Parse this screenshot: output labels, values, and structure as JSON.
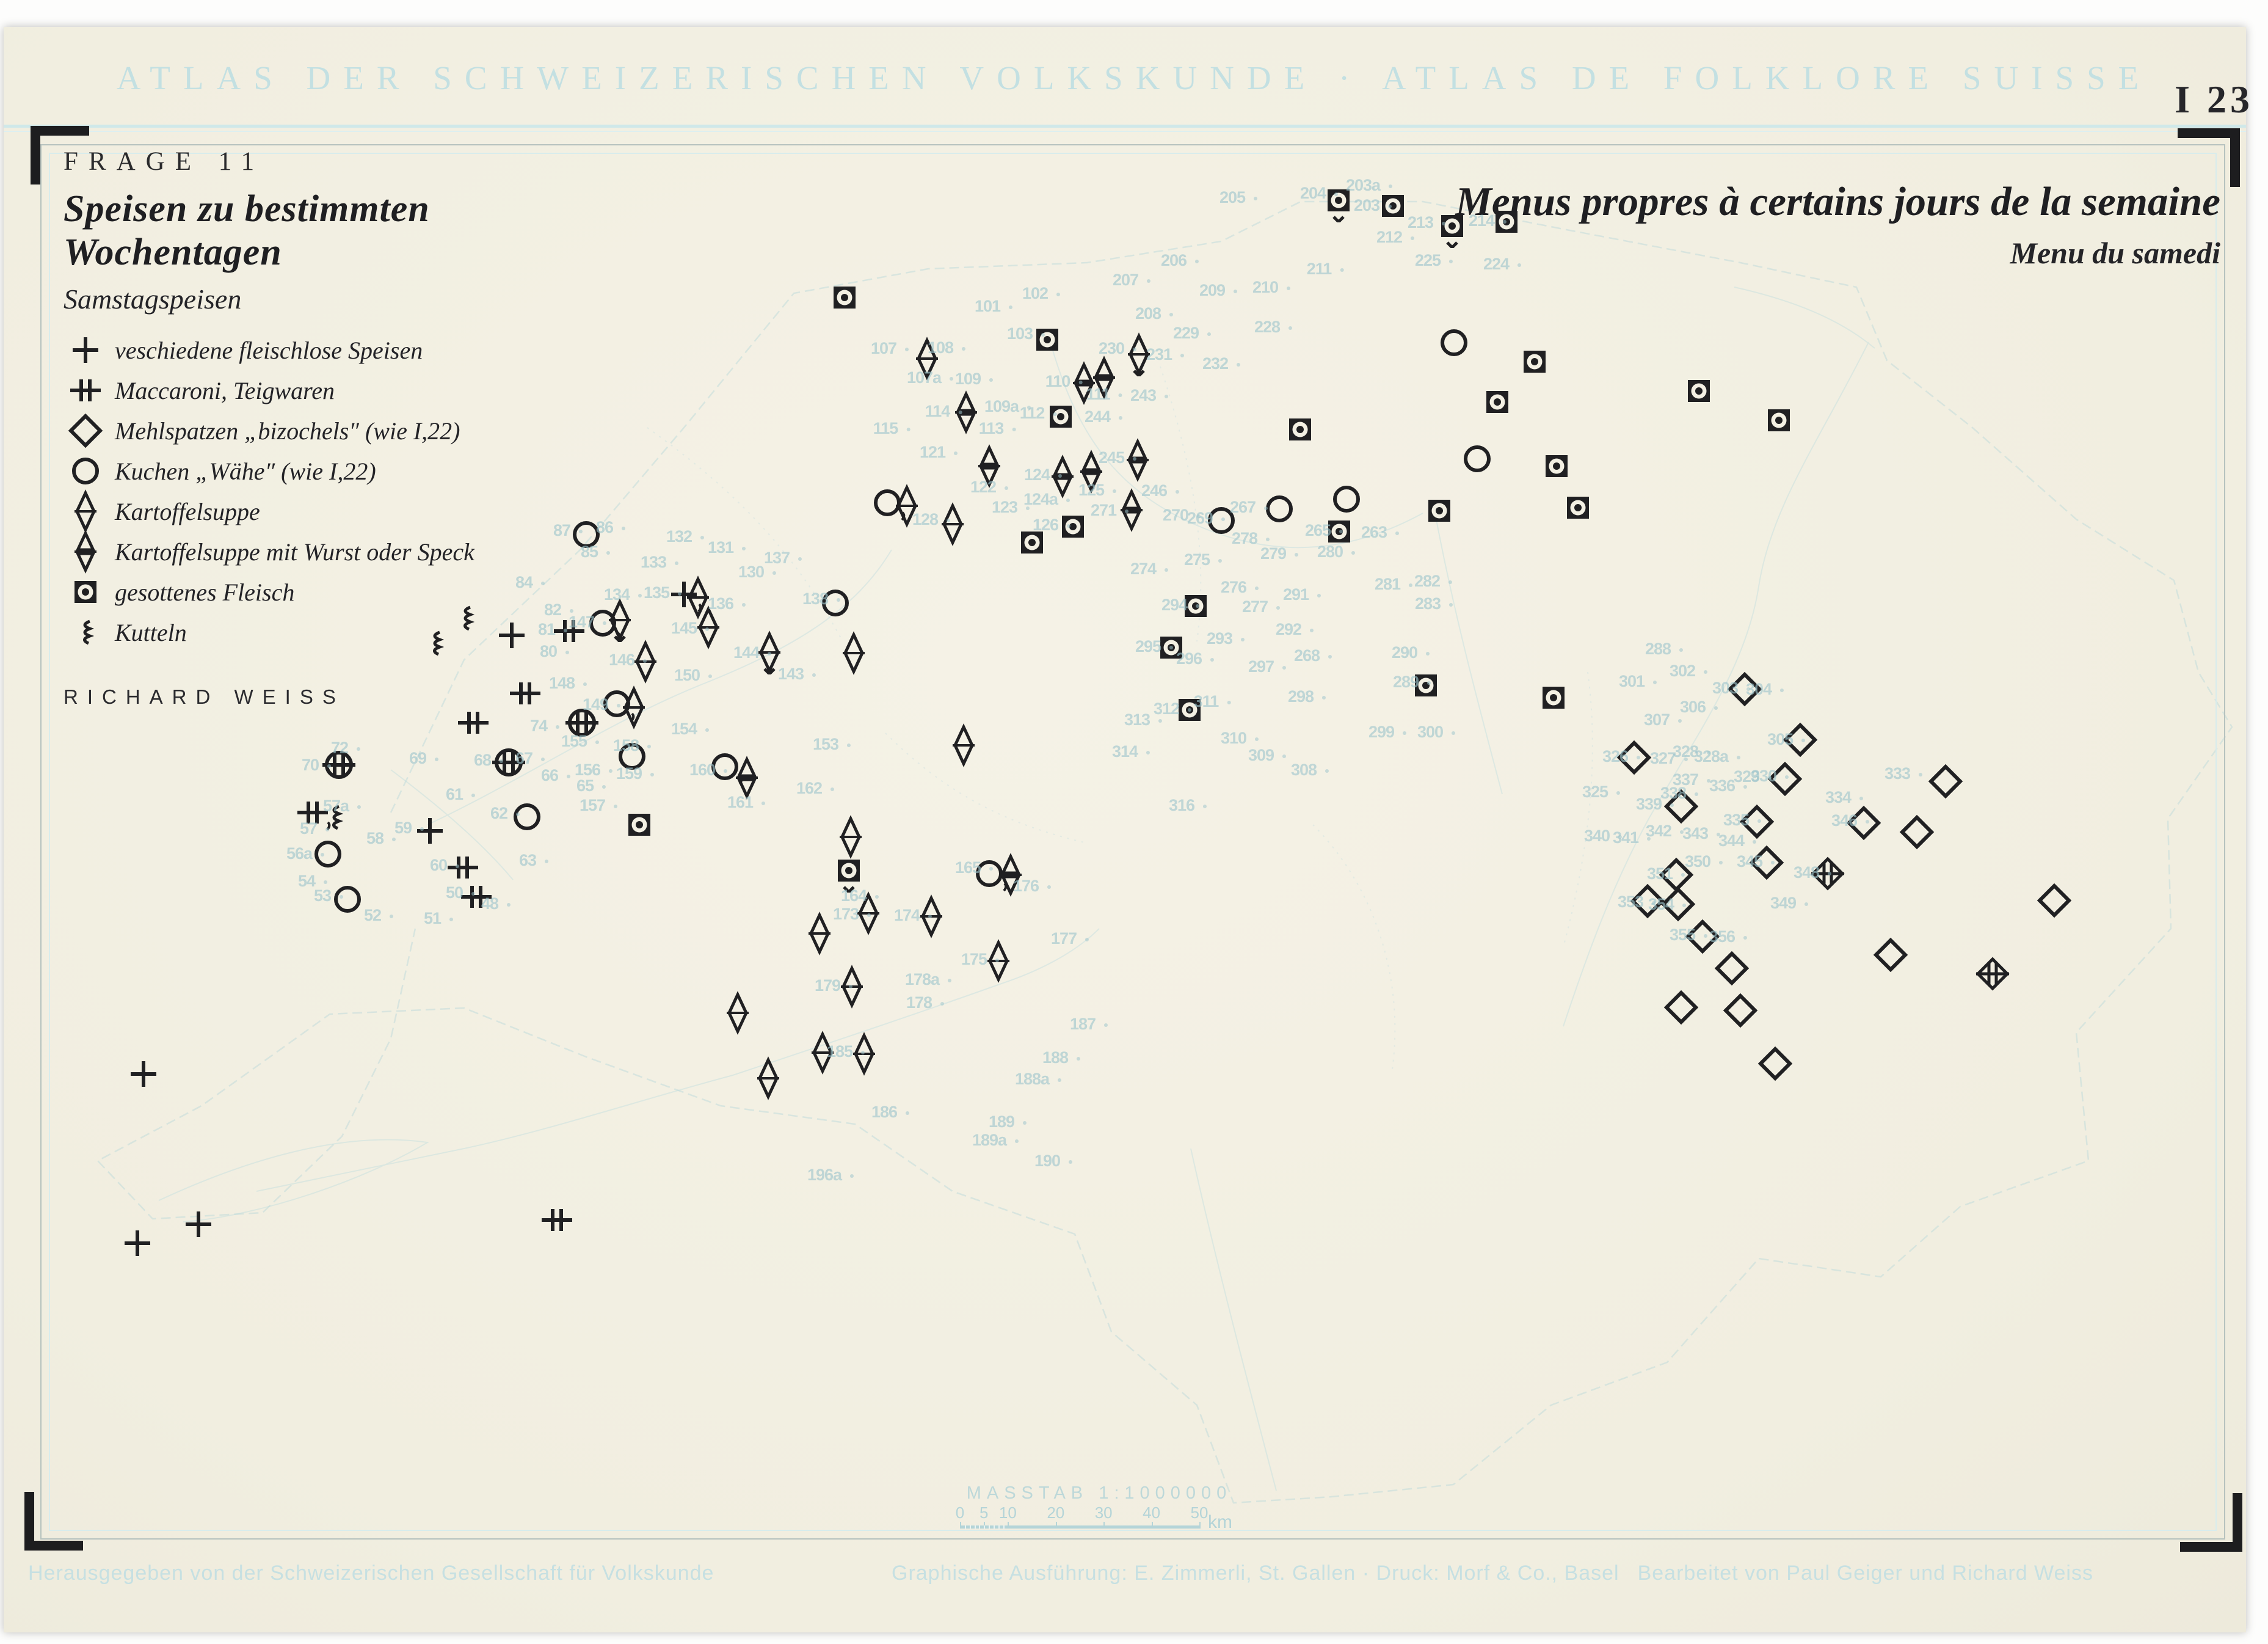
{
  "header": {
    "title": "ATLAS DER SCHWEIZERISCHEN VOLKSKUNDE · ATLAS DE FOLKLORE SUISSE"
  },
  "plate_code": "I 23",
  "legend": {
    "frage": "FRAGE 11",
    "title_de": "Speisen zu bestimmten Wochentagen",
    "subtitle_de": "Samstagspeisen",
    "items": [
      {
        "symbol": "plus",
        "label": "veschiedene fleischlose Speisen"
      },
      {
        "symbol": "maccaroni",
        "label": "Maccaroni, Teigwaren"
      },
      {
        "symbol": "diamond",
        "label": "Mehlspatzen „bizochels″ (wie I,22)"
      },
      {
        "symbol": "circle",
        "label": "Kuchen „Wähe″ (wie I,22)"
      },
      {
        "symbol": "soup",
        "label": "Kartoffelsuppe"
      },
      {
        "symbol": "soup2",
        "label": "Kartoffelsuppe mit Wurst oder Speck"
      },
      {
        "symbol": "meat",
        "label": "gesottenes Fleisch"
      },
      {
        "symbol": "tripe",
        "label": "Kutteln"
      }
    ],
    "author": "RICHARD WEISS"
  },
  "title_fr": {
    "main": "Menus propres à certains jours de la semaine",
    "sub": "Menu du samedi"
  },
  "scalebar": {
    "label": "MASSTAB 1:1000000",
    "ticks": [
      0,
      5,
      10,
      20,
      30,
      40,
      50
    ],
    "max_km": 50,
    "unit": "km"
  },
  "footer": {
    "left": "Herausgegeben von der Schweizerischen Gesellschaft für Volkskunde",
    "center": "Graphische Ausführung: E. Zimmerli, St. Gallen · Druck: Morf & Co., Basel",
    "right": "Bearbeitet von Paul Geiger und Richard Weiss"
  },
  "colors": {
    "paper": "#f3f0e3",
    "ink": "#202022",
    "pale_blue_text": "#c3e0e2",
    "map_line_blue": "#b9d8da",
    "location_number_blue": "#9fc6cd"
  },
  "map_symbols": [
    [
      "meat",
      2192,
      328,
      "v"
    ],
    [
      "meat",
      2281,
      337
    ],
    [
      "meat",
      2378,
      370,
      "v"
    ],
    [
      "meat",
      2467,
      363
    ],
    [
      "meat",
      1383,
      487
    ],
    [
      "meat",
      1715,
      556
    ],
    [
      "meat",
      2513,
      592
    ],
    [
      "meat",
      2452,
      658
    ],
    [
      "meat",
      2782,
      640
    ],
    [
      "meat",
      2913,
      688
    ],
    [
      "meat",
      2129,
      703
    ],
    [
      "meat",
      2549,
      763
    ],
    [
      "meat",
      2584,
      831
    ],
    [
      "meat",
      2357,
      836
    ],
    [
      "meat",
      2193,
      870
    ],
    [
      "meat",
      1737,
      682
    ],
    [
      "meat",
      1757,
      862
    ],
    [
      "meat",
      1690,
      888
    ],
    [
      "meat",
      1958,
      992
    ],
    [
      "meat",
      1918,
      1060
    ],
    [
      "meat",
      1948,
      1162
    ],
    [
      "meat",
      2335,
      1122
    ],
    [
      "meat",
      2544,
      1142
    ],
    [
      "meat",
      1390,
      1425,
      "v"
    ],
    [
      "meat",
      1047,
      1350
    ],
    [
      "circle",
      960,
      875
    ],
    [
      "circle",
      2381,
      561
    ],
    [
      "circle",
      2419,
      751
    ],
    [
      "circle",
      2205,
      817
    ],
    [
      "circle",
      2000,
      852
    ],
    [
      "circle",
      2095,
      833
    ],
    [
      "circle",
      1453,
      823,
      ","
    ],
    [
      "circle",
      1368,
      987
    ],
    [
      "circle",
      987,
      1020,
      ","
    ],
    [
      "circle",
      1010,
      1152,
      ","
    ],
    [
      "circle",
      1035,
      1238
    ],
    [
      "circle",
      1187,
      1255,
      ","
    ],
    [
      "circle",
      537,
      1398
    ],
    [
      "circle",
      569,
      1472
    ],
    [
      "circle",
      863,
      1337
    ],
    [
      "circle",
      1620,
      1430,
      ","
    ],
    [
      "plus",
      1120,
      973,
      ","
    ],
    [
      "plus",
      838,
      1040
    ],
    [
      "plus",
      704,
      1360
    ],
    [
      "plus",
      235,
      1758
    ],
    [
      "plus",
      325,
      2004
    ],
    [
      "plus",
      225,
      2035
    ],
    [
      "maccaroni",
      775,
      1183
    ],
    [
      "maccaroni",
      932,
      1033
    ],
    [
      "maccaroni",
      860,
      1135
    ],
    [
      "maccaroni",
      758,
      1420
    ],
    [
      "maccaroni",
      780,
      1468
    ],
    [
      "maccaroni",
      512,
      1330,
      ","
    ],
    [
      "maccaroni",
      912,
      1997
    ],
    [
      "tripe",
      548,
      1338
    ],
    [
      "tripe",
      763,
      1012
    ],
    [
      "tripe",
      713,
      1053
    ],
    [
      "circle-maccaroni",
      555,
      1252
    ],
    [
      "circle-maccaroni",
      833,
      1248
    ],
    [
      "circle-maccaroni",
      953,
      1183
    ],
    [
      "diamond",
      2857,
      1128
    ],
    [
      "diamond",
      2948,
      1211
    ],
    [
      "diamond",
      2676,
      1240
    ],
    [
      "diamond",
      2923,
      1275
    ],
    [
      "diamond",
      2753,
      1320
    ],
    [
      "diamond",
      2877,
      1345
    ],
    [
      "diamond",
      3052,
      1347
    ],
    [
      "diamond",
      2893,
      1412
    ],
    [
      "diamond",
      2745,
      1432
    ],
    [
      "diamond",
      2698,
      1475
    ],
    [
      "diamond",
      2748,
      1480
    ],
    [
      "diamond",
      2788,
      1533
    ],
    [
      "diamond",
      3186,
      1279
    ],
    [
      "diamond",
      3139,
      1362
    ],
    [
      "diamond",
      3364,
      1474
    ],
    [
      "diamond",
      3096,
      1563
    ],
    [
      "diamond",
      2836,
      1585
    ],
    [
      "diamond",
      2753,
      1649
    ],
    [
      "diamond",
      2850,
      1654
    ],
    [
      "diamond",
      2907,
      1741
    ],
    [
      "diamond-maccaroni",
      2993,
      1430
    ],
    [
      "diamond-maccaroni",
      3263,
      1594
    ],
    [
      "soup",
      1518,
      587
    ],
    [
      "soup",
      1865,
      580,
      "v"
    ],
    [
      "soup",
      1485,
      828
    ],
    [
      "soup",
      1560,
      858
    ],
    [
      "soup",
      1143,
      978
    ],
    [
      "soup",
      1015,
      1015,
      "v"
    ],
    [
      "soup",
      1160,
      1027
    ],
    [
      "soup",
      1260,
      1068,
      "v"
    ],
    [
      "soup",
      1057,
      1083
    ],
    [
      "soup",
      1038,
      1158
    ],
    [
      "soup",
      1398,
      1069
    ],
    [
      "soup",
      1578,
      1220
    ],
    [
      "soup",
      1393,
      1370
    ],
    [
      "soup",
      1422,
      1495
    ],
    [
      "soup",
      1525,
      1500
    ],
    [
      "soup",
      1342,
      1528
    ],
    [
      "soup",
      1635,
      1573
    ],
    [
      "soup",
      1395,
      1615
    ],
    [
      "soup",
      1208,
      1658
    ],
    [
      "soup",
      1347,
      1723
    ],
    [
      "soup",
      1415,
      1725
    ],
    [
      "soup",
      1258,
      1765
    ],
    [
      "soup2",
      1775,
      627
    ],
    [
      "soup2",
      1808,
      618
    ],
    [
      "soup2",
      1740,
      780
    ],
    [
      "soup2",
      1787,
      772
    ],
    [
      "soup2",
      1863,
      753
    ],
    [
      "soup2",
      1853,
      835
    ],
    [
      "soup2",
      1620,
      763
    ],
    [
      "soup2",
      1582,
      675
    ],
    [
      "soup2",
      1223,
      1273
    ],
    [
      "soup2",
      1655,
      1432
    ]
  ],
  "location_numbers": [
    [
      "204",
      2160,
      318
    ],
    [
      "203a",
      2242,
      305
    ],
    [
      "203",
      2248,
      338
    ],
    [
      "213",
      2336,
      366
    ],
    [
      "212",
      2285,
      390
    ],
    [
      "214",
      2436,
      363
    ],
    [
      "225",
      2348,
      428
    ],
    [
      "224",
      2460,
      434
    ],
    [
      "211",
      2170,
      442
    ],
    [
      "101",
      1627,
      503
    ],
    [
      "102",
      1705,
      482
    ],
    [
      "103",
      1680,
      548
    ],
    [
      "205",
      2028,
      325
    ],
    [
      "206",
      1932,
      428
    ],
    [
      "207",
      1853,
      460
    ],
    [
      "208",
      1890,
      515
    ],
    [
      "209",
      1995,
      477
    ],
    [
      "210",
      2082,
      472
    ],
    [
      "228",
      2085,
      537
    ],
    [
      "229",
      1952,
      547
    ],
    [
      "232",
      2000,
      597
    ],
    [
      "107",
      1457,
      572
    ],
    [
      "108",
      1550,
      571
    ],
    [
      "107a",
      1523,
      620
    ],
    [
      "109",
      1595,
      622
    ],
    [
      "114",
      1545,
      675
    ],
    [
      "115",
      1460,
      703
    ],
    [
      "109a",
      1650,
      667
    ],
    [
      "112",
      1700,
      678
    ],
    [
      "113",
      1633,
      703
    ],
    [
      "121",
      1537,
      742
    ],
    [
      "110",
      1742,
      626
    ],
    [
      "111",
      1808,
      647
    ],
    [
      "230",
      1830,
      572
    ],
    [
      "231",
      1908,
      582
    ],
    [
      "243",
      1882,
      649
    ],
    [
      "244",
      1807,
      684
    ],
    [
      "245",
      1830,
      751
    ],
    [
      "246",
      1900,
      805
    ],
    [
      "271",
      1817,
      837
    ],
    [
      "124",
      1708,
      779
    ],
    [
      "124a",
      1714,
      819
    ],
    [
      "125",
      1797,
      804
    ],
    [
      "123",
      1655,
      832
    ],
    [
      "122",
      1620,
      799
    ],
    [
      "126",
      1722,
      861
    ],
    [
      "128",
      1525,
      852
    ],
    [
      "72",
      566,
      1226
    ],
    [
      "70",
      518,
      1254
    ],
    [
      "69",
      694,
      1243
    ],
    [
      "68",
      800,
      1246
    ],
    [
      "67",
      868,
      1243
    ],
    [
      "66",
      910,
      1271
    ],
    [
      "65",
      968,
      1288
    ],
    [
      "61",
      754,
      1302
    ],
    [
      "62",
      827,
      1333
    ],
    [
      "59",
      670,
      1357
    ],
    [
      "58",
      624,
      1374
    ],
    [
      "57a",
      560,
      1321
    ],
    [
      "57",
      515,
      1358
    ],
    [
      "56a",
      500,
      1399
    ],
    [
      "54",
      512,
      1444
    ],
    [
      "53",
      538,
      1468
    ],
    [
      "52",
      620,
      1500
    ],
    [
      "60",
      728,
      1418
    ],
    [
      "50",
      754,
      1463
    ],
    [
      "48",
      812,
      1481
    ],
    [
      "63",
      874,
      1410
    ],
    [
      "74",
      892,
      1190
    ],
    [
      "51",
      718,
      1505
    ],
    [
      "155",
      950,
      1215
    ],
    [
      "84",
      868,
      955
    ],
    [
      "85",
      975,
      905
    ],
    [
      "86",
      1000,
      865
    ],
    [
      "87",
      930,
      870
    ],
    [
      "80",
      908,
      1068
    ],
    [
      "81",
      905,
      1032
    ],
    [
      "82",
      915,
      1000
    ],
    [
      "131",
      1190,
      898
    ],
    [
      "132",
      1122,
      880
    ],
    [
      "133",
      1080,
      922
    ],
    [
      "134",
      1020,
      975
    ],
    [
      "135",
      1085,
      972
    ],
    [
      "136",
      1190,
      990
    ],
    [
      "137",
      1282,
      915
    ],
    [
      "138",
      1345,
      982
    ],
    [
      "130",
      1240,
      938
    ],
    [
      "143",
      1305,
      1105
    ],
    [
      "144",
      1232,
      1070
    ],
    [
      "145",
      1130,
      1030
    ],
    [
      "146",
      1028,
      1082
    ],
    [
      "147",
      962,
      1020
    ],
    [
      "148",
      930,
      1120
    ],
    [
      "149",
      985,
      1155
    ],
    [
      "150",
      1135,
      1107
    ],
    [
      "153",
      1362,
      1220
    ],
    [
      "154",
      1130,
      1195
    ],
    [
      "156",
      972,
      1262
    ],
    [
      "157",
      980,
      1320
    ],
    [
      "158",
      1035,
      1222
    ],
    [
      "159",
      1040,
      1268
    ],
    [
      "160",
      1160,
      1262
    ],
    [
      "161",
      1222,
      1315
    ],
    [
      "162",
      1335,
      1292
    ],
    [
      "164",
      1408,
      1468
    ],
    [
      "165",
      1595,
      1422
    ],
    [
      "173",
      1395,
      1498
    ],
    [
      "174",
      1495,
      1500
    ],
    [
      "175",
      1605,
      1572
    ],
    [
      "176",
      1690,
      1452
    ],
    [
      "177",
      1752,
      1538
    ],
    [
      "178a",
      1520,
      1605
    ],
    [
      "178",
      1515,
      1643
    ],
    [
      "179",
      1365,
      1615
    ],
    [
      "185",
      1385,
      1723
    ],
    [
      "186",
      1458,
      1822
    ],
    [
      "187",
      1783,
      1678
    ],
    [
      "188",
      1738,
      1733
    ],
    [
      "188a",
      1700,
      1768
    ],
    [
      "189",
      1650,
      1838
    ],
    [
      "189a",
      1630,
      1868
    ],
    [
      "190",
      1725,
      1902
    ],
    [
      "196a",
      1360,
      1925
    ],
    [
      "270",
      1935,
      845
    ],
    [
      "269",
      1975,
      850
    ],
    [
      "267",
      2045,
      832
    ],
    [
      "278",
      2048,
      883
    ],
    [
      "265",
      2168,
      870
    ],
    [
      "263",
      2260,
      873
    ],
    [
      "279",
      2095,
      908
    ],
    [
      "280",
      2188,
      905
    ],
    [
      "274",
      1882,
      933
    ],
    [
      "275",
      1970,
      918
    ],
    [
      "281",
      2282,
      958
    ],
    [
      "282",
      2347,
      953
    ],
    [
      "291",
      2132,
      975
    ],
    [
      "276",
      2030,
      963
    ],
    [
      "283",
      2348,
      990
    ],
    [
      "277",
      2065,
      995
    ],
    [
      "294",
      1933,
      992
    ],
    [
      "292",
      2120,
      1032
    ],
    [
      "293",
      2007,
      1047
    ],
    [
      "295",
      1890,
      1060
    ],
    [
      "296",
      1957,
      1080
    ],
    [
      "268",
      2150,
      1075
    ],
    [
      "290",
      2310,
      1070
    ],
    [
      "297",
      2075,
      1093
    ],
    [
      "298",
      2140,
      1142
    ],
    [
      "289",
      2312,
      1118
    ],
    [
      "311",
      1985,
      1150
    ],
    [
      "312",
      1920,
      1162
    ],
    [
      "313",
      1872,
      1180
    ],
    [
      "310",
      2030,
      1210
    ],
    [
      "299",
      2272,
      1200
    ],
    [
      "300",
      2352,
      1200
    ],
    [
      "309",
      2075,
      1238
    ],
    [
      "308",
      2145,
      1262
    ],
    [
      "314",
      1852,
      1232
    ],
    [
      "316",
      1945,
      1320
    ],
    [
      "288",
      2725,
      1064
    ],
    [
      "301",
      2682,
      1117
    ],
    [
      "302",
      2765,
      1100
    ],
    [
      "303",
      2835,
      1128
    ],
    [
      "304",
      2890,
      1130
    ],
    [
      "306",
      2782,
      1159
    ],
    [
      "307",
      2723,
      1180
    ],
    [
      "305",
      2925,
      1212
    ],
    [
      "326",
      2655,
      1240
    ],
    [
      "327",
      2733,
      1243
    ],
    [
      "328",
      2770,
      1232
    ],
    [
      "328a",
      2812,
      1240
    ],
    [
      "329",
      2870,
      1273
    ],
    [
      "330",
      2898,
      1272
    ],
    [
      "333",
      3117,
      1268
    ],
    [
      "325",
      2622,
      1298
    ],
    [
      "337",
      2770,
      1278
    ],
    [
      "336",
      2830,
      1288
    ],
    [
      "334",
      3020,
      1307
    ],
    [
      "338",
      2750,
      1300
    ],
    [
      "339",
      2710,
      1318
    ],
    [
      "340",
      2625,
      1370
    ],
    [
      "341",
      2672,
      1373
    ],
    [
      "342",
      2726,
      1362
    ],
    [
      "343",
      2786,
      1366
    ],
    [
      "344",
      2845,
      1378
    ],
    [
      "335",
      2853,
      1344
    ],
    [
      "346",
      3030,
      1345
    ],
    [
      "345",
      2875,
      1412
    ],
    [
      "350",
      2790,
      1412
    ],
    [
      "348",
      2968,
      1430
    ],
    [
      "351",
      2728,
      1432
    ],
    [
      "353",
      2680,
      1478
    ],
    [
      "354",
      2730,
      1482
    ],
    [
      "349",
      2930,
      1480
    ],
    [
      "355",
      2765,
      1532
    ],
    [
      "356",
      2830,
      1535
    ]
  ]
}
